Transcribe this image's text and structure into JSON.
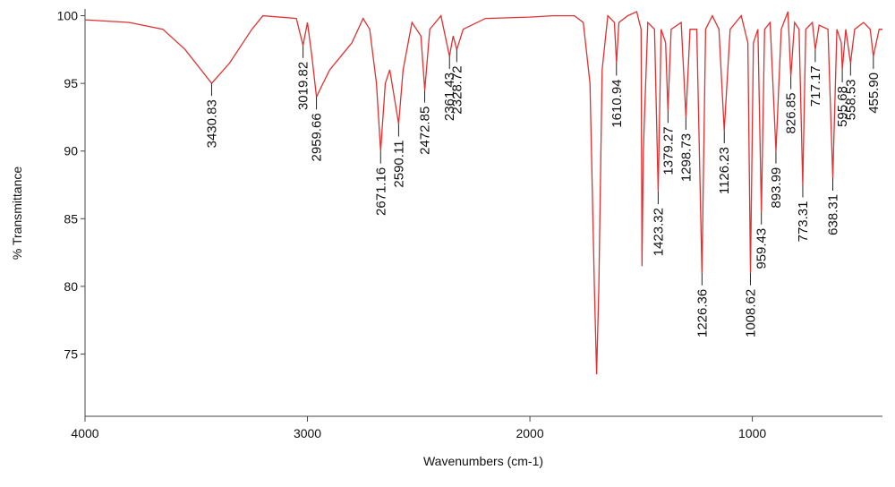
{
  "chart_data": {
    "type": "line",
    "xlabel": "Wavenumbers (cm-1)",
    "ylabel": "% Transmittance",
    "color": "#e03030",
    "xlim": [
      4000,
      415
    ],
    "ylim": [
      70.4,
      100.5
    ],
    "xticks": [
      4000,
      3000,
      2000,
      1000
    ],
    "yticks": [
      75,
      80,
      85,
      90,
      95,
      100
    ],
    "x": [
      4000,
      3800,
      3650,
      3550,
      3430.83,
      3350,
      3250,
      3200,
      3050,
      3019.82,
      3000,
      2980,
      2959.66,
      2930,
      2900,
      2850,
      2800,
      2750,
      2720,
      2690,
      2671.16,
      2650,
      2630,
      2610,
      2590.11,
      2570,
      2530,
      2490,
      2472.85,
      2450,
      2400,
      2361.43,
      2345,
      2328.72,
      2300,
      2200,
      2000,
      1900,
      1800,
      1760,
      1730,
      1710,
      1700,
      1690,
      1675,
      1650,
      1620,
      1610.94,
      1600,
      1560,
      1520,
      1500,
      1496,
      1490,
      1470,
      1440,
      1423.32,
      1410,
      1390,
      1379.27,
      1365,
      1320,
      1298.73,
      1280,
      1250,
      1226.36,
      1210,
      1180,
      1150,
      1126.23,
      1100,
      1050,
      1020,
      1008.62,
      995,
      975,
      959.43,
      945,
      920,
      893.99,
      870,
      840,
      826.85,
      810,
      790,
      773.31,
      760,
      730,
      717.17,
      700,
      660,
      638.31,
      620,
      600,
      595.68,
      580,
      558.53,
      540,
      500,
      470,
      455.9,
      430,
      415
    ],
    "values": [
      99.7,
      99.5,
      99,
      97.5,
      95,
      96.5,
      99,
      100,
      99.8,
      97.8,
      99.5,
      97,
      94,
      95,
      96,
      97,
      98,
      99.8,
      99,
      95,
      90,
      95,
      96,
      94,
      92,
      96,
      99.5,
      98.5,
      94.5,
      99,
      100,
      97,
      98.5,
      97.5,
      99,
      99.8,
      99.9,
      100,
      100,
      99.5,
      95,
      80,
      73.5,
      80,
      96,
      100,
      99.5,
      96.5,
      99.5,
      100,
      100.3,
      99,
      81.5,
      90,
      99.5,
      99,
      87,
      99,
      98,
      93,
      99,
      99.5,
      92.5,
      99,
      99,
      81,
      99,
      100,
      99,
      91.5,
      99,
      100,
      98,
      81,
      98,
      99,
      85.5,
      99,
      99.5,
      90,
      99,
      100.3,
      95.5,
      99.5,
      99,
      87.5,
      99,
      99.5,
      97.5,
      99.3,
      99,
      88,
      99,
      98,
      96,
      99,
      96.5,
      99,
      99.5,
      99,
      97,
      99,
      99
    ],
    "peaks": {
      "x": [
        3430.83,
        3019.82,
        2959.66,
        2671.16,
        2590.11,
        2472.85,
        2361.43,
        2328.72,
        1610.94,
        1423.32,
        1379.27,
        1298.73,
        1226.36,
        1126.23,
        1008.62,
        959.43,
        893.99,
        826.85,
        773.31,
        717.17,
        638.31,
        595.68,
        558.53,
        {
          "value": 455.9,
          "label": "455.90"
        }
      ],
      "y": [
        95,
        97.8,
        94,
        90,
        92,
        94.5,
        97,
        97.5,
        96.5,
        87,
        93,
        92.5,
        81,
        91.5,
        81,
        85.5,
        90,
        95.5,
        87.5,
        97.5,
        88,
        96,
        96.5,
        97
      ]
    }
  }
}
